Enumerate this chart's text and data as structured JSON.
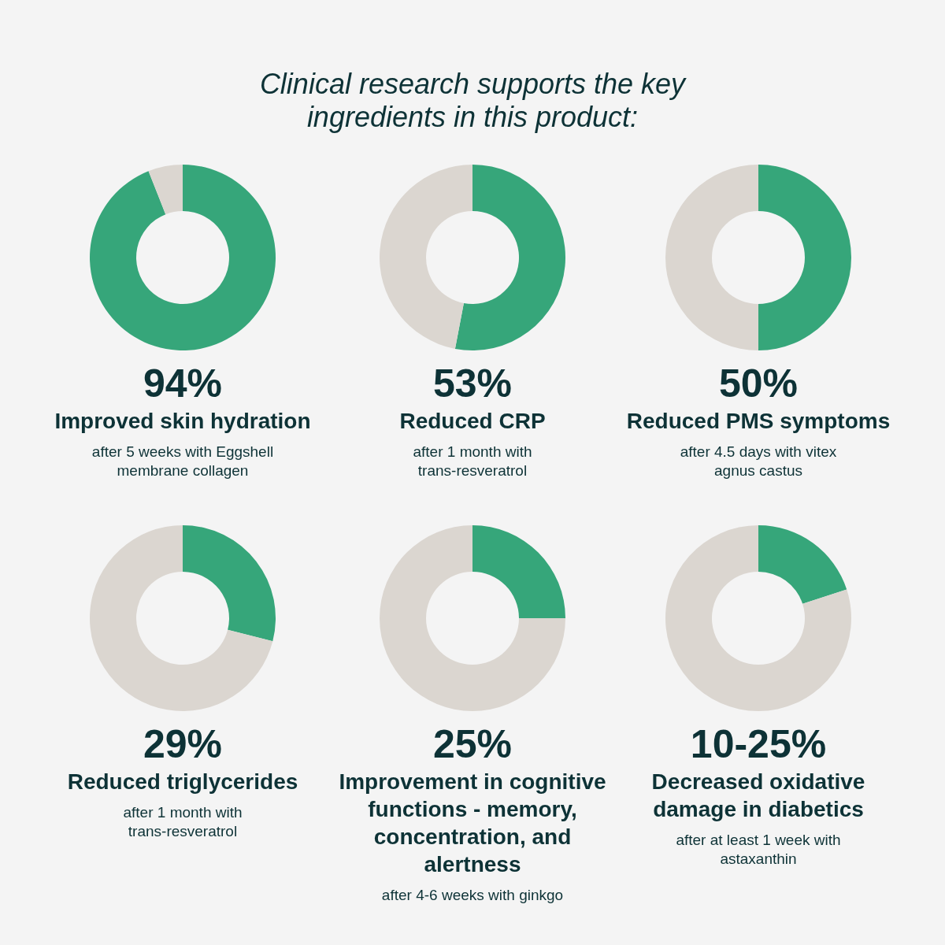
{
  "chart_data": [
    {
      "type": "other",
      "title": "Clinical research supports the key ingredients in this product:"
    },
    {
      "type": "donut",
      "title": "Improved skin hydration",
      "subtitle": "after 5 weeks with Eggshell membrane collagen",
      "categories": [
        null,
        null
      ],
      "values": [
        94,
        6
      ],
      "colors": [
        "#36a67a",
        "#dbd6d0"
      ],
      "annotations": [
        "94%"
      ]
    },
    {
      "type": "donut",
      "title": "Reduced CRP",
      "subtitle": "after 1 month with trans-resveratrol",
      "categories": [
        null,
        null
      ],
      "values": [
        53,
        47
      ],
      "colors": [
        "#36a67a",
        "#dbd6d0"
      ],
      "annotations": [
        "53%"
      ]
    },
    {
      "type": "donut",
      "title": "Reduced PMS symptoms",
      "subtitle": "after 4.5 days with vitex agnus castus",
      "categories": [
        null,
        null
      ],
      "values": [
        50,
        50
      ],
      "colors": [
        "#36a67a",
        "#dbd6d0"
      ],
      "annotations": [
        "50%"
      ]
    },
    {
      "type": "donut",
      "title": "Reduced triglycerides",
      "subtitle": "after 1 month with trans-resveratrol",
      "categories": [
        null,
        null
      ],
      "values": [
        29,
        71
      ],
      "colors": [
        "#36a67a",
        "#dbd6d0"
      ],
      "annotations": [
        "29%"
      ]
    },
    {
      "type": "donut",
      "title": "Improvement in cognitive functions - memory, concentration, and alertness",
      "subtitle": "after 4-6 weeks with ginkgo",
      "categories": [
        null,
        null
      ],
      "values": [
        25,
        75
      ],
      "colors": [
        "#36a67a",
        "#dbd6d0"
      ],
      "annotations": [
        "25%"
      ]
    },
    {
      "type": "donut",
      "title": "Decreased oxidative damage in diabetics",
      "subtitle": "after at least 1 week with astaxanthin",
      "categories": [
        null,
        null
      ],
      "values": [
        20,
        80
      ],
      "colors": [
        "#36a67a",
        "#dbd6d0"
      ],
      "annotations": [
        "10-25%"
      ]
    }
  ]
}
